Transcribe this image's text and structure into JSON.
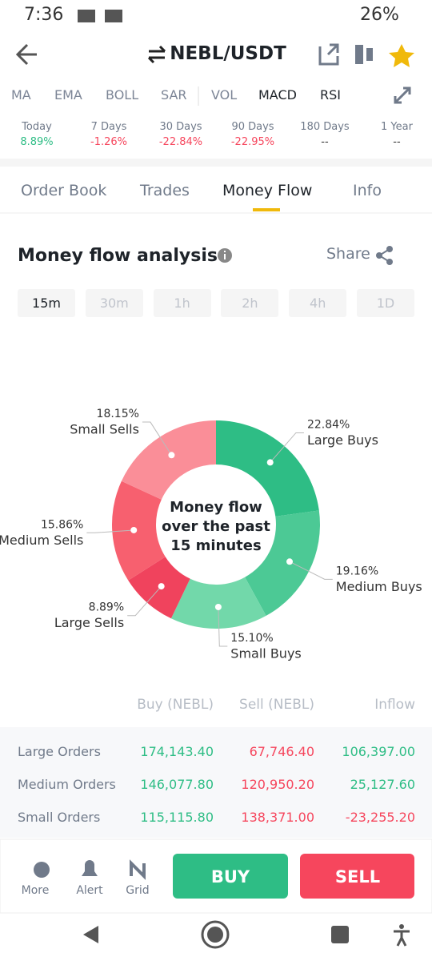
{
  "status_bar": {
    "time": "7:36",
    "battery": "26%"
  },
  "header": {
    "title": "NEBL/USDT"
  },
  "indicators": [
    "MA",
    "EMA",
    "BOLL",
    "SAR",
    "VOL",
    "MACD",
    "RSI"
  ],
  "performance": [
    {
      "label": "Today",
      "value": "8.89%"
    },
    {
      "label": "7 Days",
      "value": "-1.26%"
    },
    {
      "label": "30 Days",
      "value": "-22.84%"
    },
    {
      "label": "90 Days",
      "value": "-22.95%"
    },
    {
      "label": "180 Days",
      "value": "--"
    },
    {
      "label": "1 Year",
      "value": "--"
    }
  ],
  "tabs": [
    "Order Book",
    "Trades",
    "Money Flow",
    "Info"
  ],
  "section": {
    "title": "Money flow analysis",
    "share": "Share"
  },
  "intervals": [
    "15m",
    "30m",
    "1h",
    "2h",
    "4h",
    "1D"
  ],
  "chart_data": {
    "type": "pie",
    "donut": true,
    "center_text": "Money flow over the past 15 minutes",
    "categories": [
      "Large Buys",
      "Medium Buys",
      "Small Buys",
      "Large Sells",
      "Medium Sells",
      "Small Sells"
    ],
    "values": [
      22.84,
      19.16,
      15.1,
      8.89,
      15.86,
      18.15
    ],
    "value_labels": [
      "22.84%",
      "19.16%",
      "15.10%",
      "8.89%",
      "15.86%",
      "18.15%"
    ],
    "colors": [
      "#2ebd85",
      "#4cc995",
      "#72d8aa",
      "#f0435d",
      "#f7606f",
      "#fa8e98"
    ]
  },
  "table": {
    "header": [
      "Buy (NEBL)",
      "Sell (NEBL)",
      "Inflow"
    ],
    "rows": [
      [
        "Large Orders",
        "174,143.40",
        "67,746.40",
        "106,397.00"
      ],
      [
        "Medium Orders",
        "146,077.80",
        "120,950.20",
        "25,127.60"
      ],
      [
        "Small Orders",
        "115,115.80",
        "138,371.00",
        "-23,255.20"
      ]
    ]
  },
  "bottom_bar": {
    "more": "More",
    "alert": "Alert",
    "grid": "Grid",
    "buy": "BUY",
    "sell": "SELL"
  }
}
